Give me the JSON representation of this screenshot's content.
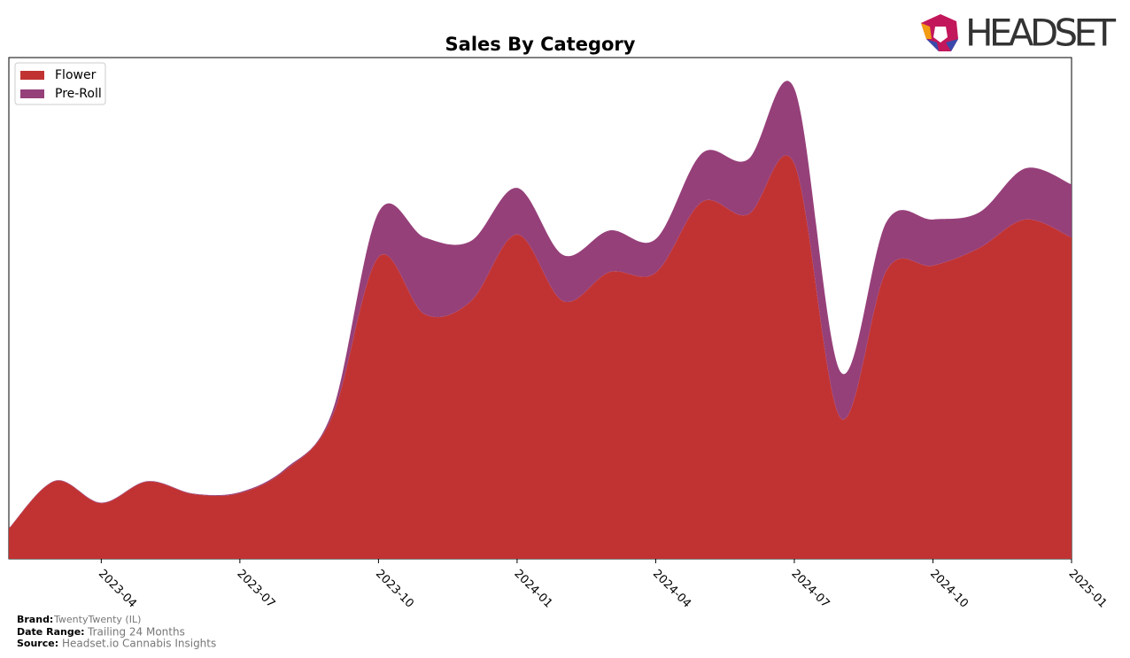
{
  "chart_data": {
    "type": "stacked_area",
    "title": "Sales By Category",
    "x": [
      "2023-02",
      "2023-03",
      "2023-04",
      "2023-05",
      "2023-06",
      "2023-07",
      "2023-08",
      "2023-09",
      "2023-10",
      "2023-11",
      "2023-12",
      "2024-01",
      "2024-02",
      "2024-03",
      "2024-04",
      "2024-05",
      "2024-06",
      "2024-07",
      "2024-08",
      "2024-09",
      "2024-10",
      "2024-11",
      "2024-12",
      "2025-01"
    ],
    "series": [
      {
        "name": "Flower",
        "color": "#c13333",
        "values": [
          6.0,
          15.5,
          11.1,
          15.4,
          12.9,
          13.1,
          17.8,
          28.4,
          60.2,
          48.8,
          51.4,
          64.7,
          51.4,
          57.2,
          57.1,
          71.2,
          68.7,
          78.8,
          28.1,
          57.6,
          58.5,
          62.0,
          67.7,
          64.1
        ]
      },
      {
        "name": "Pre-Roll",
        "color": "#96407a",
        "values": [
          0.1,
          0.1,
          0.1,
          0.1,
          0.1,
          0.2,
          0.3,
          1.0,
          8.9,
          15.3,
          12.0,
          9.3,
          9.2,
          8.3,
          6.7,
          9.7,
          11.0,
          15.0,
          9.2,
          9.7,
          9.2,
          7.1,
          10.2,
          10.6
        ]
      }
    ],
    "xticks": [
      "2023-04",
      "2023-07",
      "2023-10",
      "2024-01",
      "2024-04",
      "2024-07",
      "2024-10",
      "2025-01"
    ],
    "ylim": [
      0,
      100
    ],
    "legend": "upper left"
  },
  "logo": "HEADSET",
  "footer": {
    "brand_label": "Brand:",
    "brand": "TwentyTwenty (IL)",
    "range_label": "Date Range:",
    "range": "Trailing 24 Months",
    "source_label": "Source:",
    "source": "Headset.io Cannabis Insights"
  }
}
